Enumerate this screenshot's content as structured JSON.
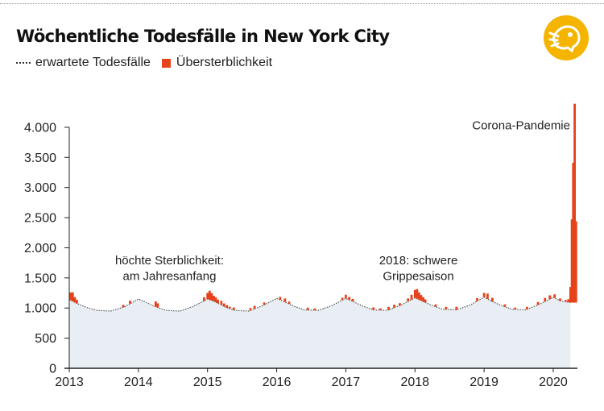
{
  "title": "Wöchentliche Todesfälle in New York City",
  "legend": {
    "expected": "erwartete Todesfälle",
    "excess": "Übersterblichkeit"
  },
  "colors": {
    "excess": "#e6421b",
    "expected_fill": "#e8eef3",
    "expected_line": "#555555",
    "logo": "#f5b400"
  },
  "logo": {
    "icon": "logo-icon"
  },
  "chart_data": {
    "type": "area",
    "title": "Wöchentliche Todesfälle in New York City",
    "xlabel": "",
    "ylabel": "",
    "ylim": [
      0,
      4400
    ],
    "xlim": [
      2013,
      2020.35
    ],
    "grid": false,
    "legend_placement": "top-left",
    "y_ticks": [
      0,
      500,
      1000,
      1500,
      2000,
      2500,
      3000,
      3500,
      4000
    ],
    "y_tick_labels": [
      "0",
      "500",
      "1.000",
      "1.500",
      "2.000",
      "2.500",
      "3.000",
      "3.500",
      "4.000"
    ],
    "x_ticks": [
      2013,
      2014,
      2015,
      2016,
      2017,
      2018,
      2019,
      2020
    ],
    "x_tick_labels": [
      "2013",
      "2014",
      "2015",
      "2016",
      "2017",
      "2018",
      "2019",
      "2020"
    ],
    "series": [
      {
        "name": "erwartete Todesfälle",
        "x": [
          2013.0,
          2013.1,
          2013.25,
          2013.4,
          2013.6,
          2013.8,
          2014.0,
          2014.1,
          2014.25,
          2014.4,
          2014.6,
          2014.8,
          2015.0,
          2015.1,
          2015.25,
          2015.4,
          2015.6,
          2015.8,
          2016.0,
          2016.1,
          2016.25,
          2016.4,
          2016.6,
          2016.8,
          2017.0,
          2017.1,
          2017.25,
          2017.4,
          2017.6,
          2017.8,
          2018.0,
          2018.1,
          2018.25,
          2018.4,
          2018.6,
          2018.8,
          2019.0,
          2019.1,
          2019.25,
          2019.4,
          2019.6,
          2019.8,
          2020.0,
          2020.1,
          2020.25
        ],
        "values": [
          1140,
          1080,
          1010,
          960,
          950,
          1020,
          1150,
          1100,
          1020,
          960,
          950,
          1030,
          1150,
          1110,
          1020,
          960,
          950,
          1040,
          1160,
          1110,
          1030,
          970,
          960,
          1040,
          1160,
          1110,
          1030,
          970,
          960,
          1050,
          1170,
          1120,
          1040,
          980,
          970,
          1050,
          1180,
          1120,
          1040,
          980,
          970,
          1060,
          1180,
          1120,
          1090
        ]
      },
      {
        "name": "Übersterblichkeit",
        "x": [
          2013.02,
          2013.05,
          2013.08,
          2013.11,
          2013.78,
          2013.88,
          2014.25,
          2014.28,
          2014.95,
          2015.0,
          2015.03,
          2015.06,
          2015.09,
          2015.12,
          2015.15,
          2015.2,
          2015.24,
          2015.28,
          2015.32,
          2015.38,
          2015.62,
          2015.68,
          2015.82,
          2016.05,
          2016.12,
          2016.18,
          2016.45,
          2016.55,
          2016.95,
          2017.0,
          2017.05,
          2017.1,
          2017.4,
          2017.5,
          2017.62,
          2017.7,
          2017.78,
          2017.9,
          2017.95,
          2018.0,
          2018.03,
          2018.06,
          2018.09,
          2018.12,
          2018.15,
          2018.3,
          2018.45,
          2018.6,
          2018.9,
          2019.0,
          2019.05,
          2019.12,
          2019.3,
          2019.45,
          2019.62,
          2019.78,
          2019.88,
          2019.95,
          2020.02,
          2020.1,
          2020.18,
          2020.22,
          2020.25,
          2020.27,
          2020.29,
          2020.31,
          2020.33
        ],
        "values": [
          130,
          150,
          90,
          60,
          40,
          50,
          90,
          70,
          60,
          100,
          150,
          120,
          90,
          80,
          60,
          70,
          50,
          40,
          30,
          40,
          40,
          50,
          40,
          50,
          60,
          40,
          40,
          30,
          40,
          60,
          50,
          40,
          40,
          30,
          50,
          50,
          40,
          50,
          80,
          130,
          160,
          120,
          90,
          70,
          50,
          40,
          40,
          50,
          50,
          70,
          90,
          60,
          40,
          30,
          40,
          50,
          60,
          60,
          60,
          40,
          30,
          50,
          260,
          1380,
          2320,
          3300,
          1350
        ]
      }
    ],
    "annotations": [
      {
        "text": "höchte Sterblichkeit:",
        "x": 2014.45,
        "y": 1790
      },
      {
        "text": "am Jahresanfang",
        "x": 2014.45,
        "y": 1530
      },
      {
        "text": "2018: schwere",
        "x": 2018.05,
        "y": 1790
      },
      {
        "text": "Grippesaison",
        "x": 2018.05,
        "y": 1530
      },
      {
        "text": "Corona-Pandemie",
        "x": 2020.1,
        "y": 4030
      }
    ]
  }
}
